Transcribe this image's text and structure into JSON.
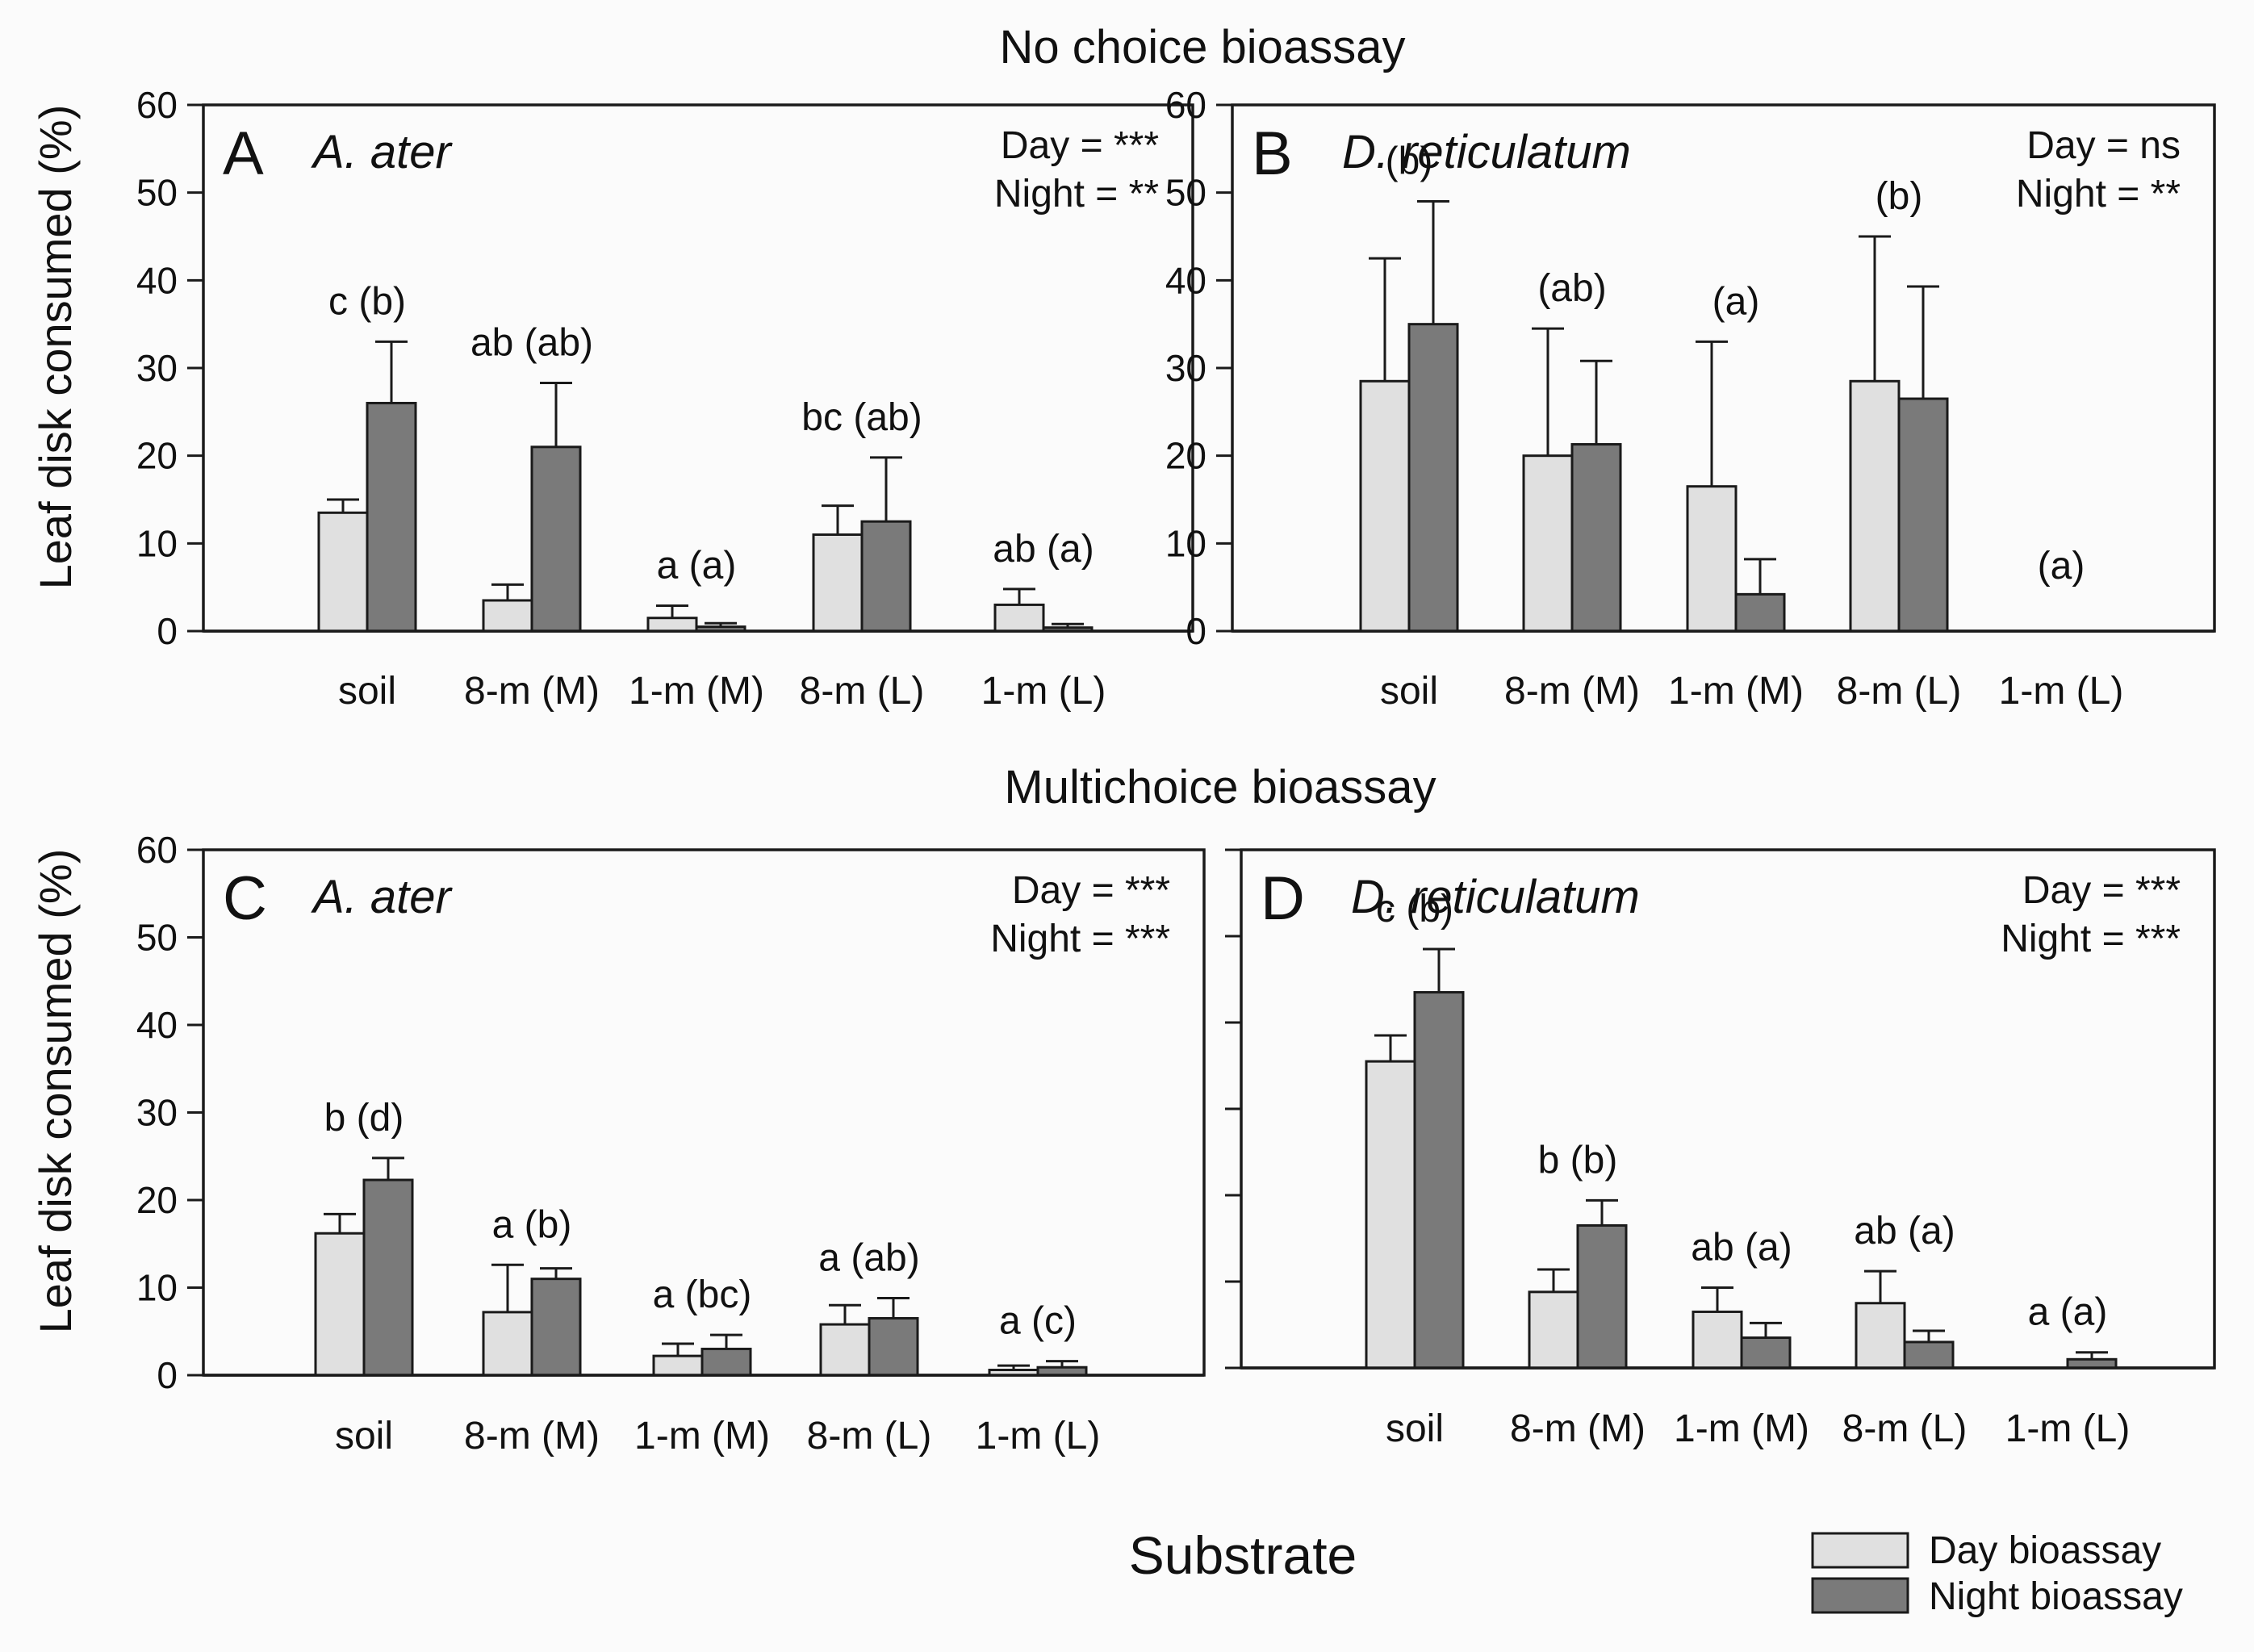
{
  "colors": {
    "day": "#e0e0e0",
    "night": "#7a7a7a"
  },
  "section_titles": [
    "No choice bioassay",
    "Multichoice bioassay"
  ],
  "y_axis_label": "Leaf disk consumed (%)",
  "x_axis_label": "Substrate",
  "legend": {
    "day": "Day bioassay",
    "night": "Night bioassay"
  },
  "chart_data": [
    {
      "type": "bar",
      "panel": "A",
      "species": "A. ater",
      "assay": "No choice bioassay",
      "categories": [
        "soil",
        "8-m (M)",
        "1-m (M)",
        "8-m (L)",
        "1-m (L)"
      ],
      "series": [
        {
          "name": "Day bioassay",
          "values": [
            13.5,
            3.5,
            1.5,
            11,
            3
          ],
          "err_upper": [
            15,
            5.3,
            2.9,
            14.3,
            4.8
          ]
        },
        {
          "name": "Night bioassay",
          "values": [
            26,
            21,
            0.5,
            12.5,
            0.4
          ],
          "err_upper": [
            33,
            28.3,
            0.9,
            19.8,
            0.8
          ]
        }
      ],
      "letters": [
        "c (b)",
        "ab (ab)",
        "a (a)",
        "bc (ab)",
        "ab (a)"
      ],
      "stats": [
        "Day = ***",
        "Night = **"
      ],
      "ylim": [
        0,
        60
      ],
      "yticks": [
        0,
        10,
        20,
        30,
        40,
        50,
        60
      ]
    },
    {
      "type": "bar",
      "panel": "B",
      "species": "D. reticulatum",
      "assay": "No choice bioassay",
      "categories": [
        "soil",
        "8-m (M)",
        "1-m (M)",
        "8-m (L)",
        "1-m (L)"
      ],
      "series": [
        {
          "name": "Day bioassay",
          "values": [
            28.5,
            20,
            16.5,
            28.5,
            0
          ],
          "err_upper": [
            42.5,
            34.5,
            33,
            45,
            0
          ]
        },
        {
          "name": "Night bioassay",
          "values": [
            35,
            21.3,
            4.2,
            26.5,
            0
          ],
          "err_upper": [
            49,
            30.8,
            8.2,
            39.3,
            0
          ]
        }
      ],
      "letters": [
        "(b)",
        "(ab)",
        "(a)",
        "(b)",
        "(a)"
      ],
      "stats": [
        "Day = ns",
        "Night = **"
      ],
      "ylim": [
        0,
        60
      ],
      "yticks": [
        0,
        10,
        20,
        30,
        40,
        50,
        60
      ]
    },
    {
      "type": "bar",
      "panel": "C",
      "species": "A. ater",
      "assay": "Multichoice bioassay",
      "categories": [
        "soil",
        "8-m (M)",
        "1-m (M)",
        "8-m (L)",
        "1-m (L)"
      ],
      "series": [
        {
          "name": "Day bioassay",
          "values": [
            16.2,
            7.2,
            2.2,
            5.8,
            0.6
          ],
          "err_upper": [
            18.4,
            12.6,
            3.6,
            8,
            1.1
          ]
        },
        {
          "name": "Night bioassay",
          "values": [
            22.3,
            11,
            3,
            6.5,
            0.9
          ],
          "err_upper": [
            24.8,
            12.2,
            4.6,
            8.8,
            1.6
          ]
        }
      ],
      "letters": [
        "b (d)",
        "a (b)",
        "a (bc)",
        "a (ab)",
        "a (c)"
      ],
      "stats": [
        "Day = ***",
        "Night = ***"
      ],
      "ylim": [
        0,
        60
      ],
      "yticks": [
        0,
        10,
        20,
        30,
        40,
        50,
        60
      ]
    },
    {
      "type": "bar",
      "panel": "D",
      "species": "D. reticulatum",
      "assay": "Multichoice bioassay",
      "categories": [
        "soil",
        "8-m (M)",
        "1-m (M)",
        "8-m (L)",
        "1-m (L)"
      ],
      "series": [
        {
          "name": "Day bioassay",
          "values": [
            35.5,
            8.8,
            6.5,
            7.5,
            0
          ],
          "err_upper": [
            38.5,
            11.4,
            9.3,
            11.2,
            0
          ]
        },
        {
          "name": "Night bioassay",
          "values": [
            43.5,
            16.5,
            3.5,
            3,
            1
          ],
          "err_upper": [
            48.5,
            19.4,
            5.2,
            4.3,
            1.8
          ]
        }
      ],
      "letters": [
        "c (b)",
        "b (b)",
        "ab (a)",
        "ab (a)",
        "a (a)"
      ],
      "stats": [
        "Day = ***",
        "Night = ***"
      ],
      "ylim": [
        0,
        60
      ],
      "yticks": []
    }
  ]
}
